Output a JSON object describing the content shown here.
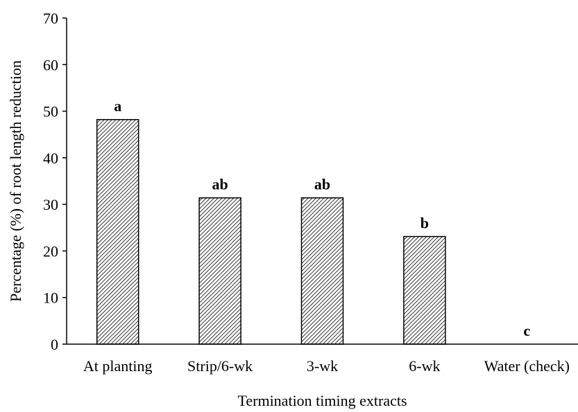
{
  "chart_data": {
    "type": "bar",
    "title": "",
    "xlabel": "Termination timing extracts",
    "ylabel": "Percentage (%) of root length reduction",
    "categories": [
      "At planting",
      "Strip/6-wk",
      "3-wk",
      "6-wk",
      "Water (check)"
    ],
    "values": [
      48.2,
      31.4,
      31.4,
      23.1,
      0
    ],
    "significance_labels": [
      "a",
      "ab",
      "ab",
      "b",
      "c"
    ],
    "ylim": [
      0,
      70
    ],
    "yticks": [
      0,
      10,
      20,
      30,
      40,
      50,
      60,
      70
    ],
    "grid": false,
    "legend": "none",
    "bar_fill": "diagonal-hatch",
    "colors": {
      "bar_stroke": "#000000",
      "hatch": "#000000",
      "background": "#ffffff"
    }
  }
}
